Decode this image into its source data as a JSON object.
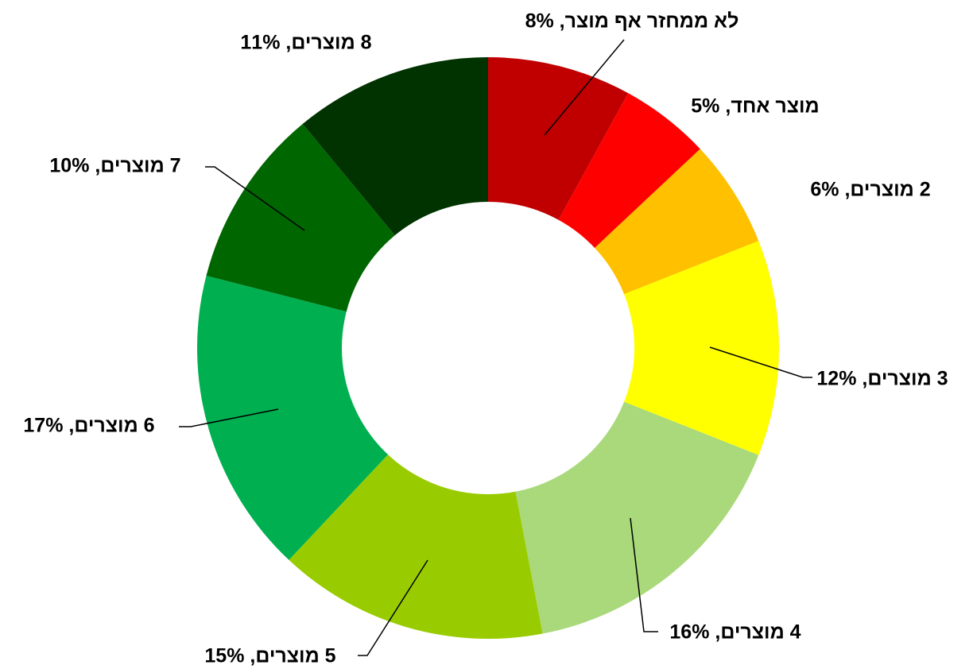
{
  "chart_data": {
    "type": "donut",
    "values": [
      8,
      5,
      6,
      12,
      16,
      15,
      17,
      10,
      11
    ],
    "value_labels": [
      "לא ממחזר אף מוצר, 8%",
      "מוצר אחד, 5%",
      "2 מוצרים, 6%",
      "3 מוצרים, 12%",
      "4 מוצרים, 16%",
      "5 מוצרים, 15%",
      "6 מוצרים, 17%",
      "7 מוצרים, 10%",
      "8 מוצרים, 11%"
    ],
    "colors": [
      "#c00000",
      "#ff0000",
      "#ffc000",
      "#ffff00",
      "#a9d97a",
      "#99cc00",
      "#00b050",
      "#006600",
      "#003300"
    ]
  }
}
